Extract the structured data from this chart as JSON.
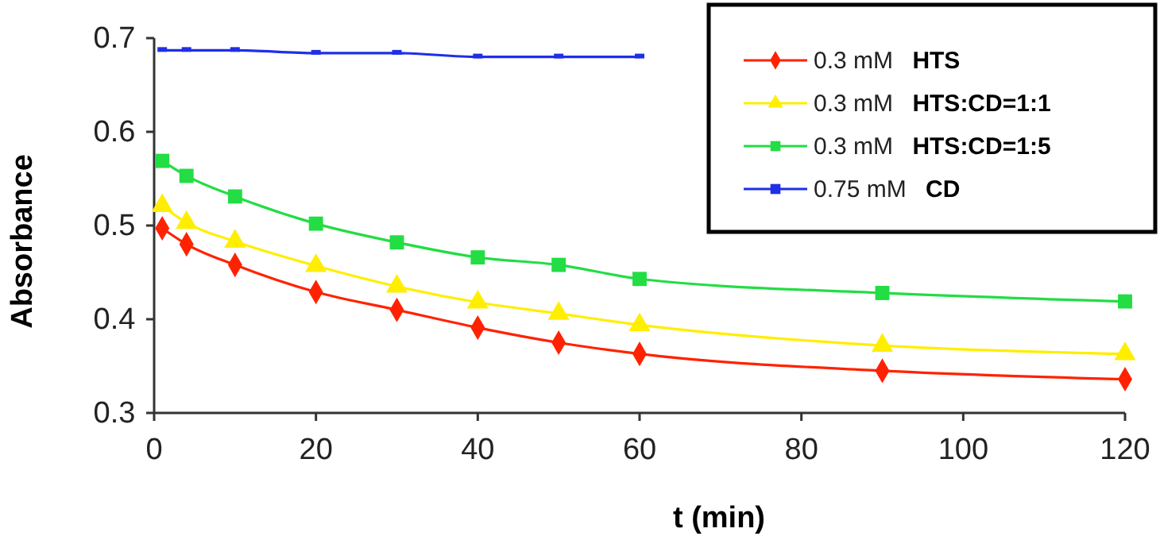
{
  "chart_data": {
    "type": "line",
    "xlabel": "t (min)",
    "ylabel": "Absorbance",
    "xlim": [
      0,
      120
    ],
    "xticks": [
      0,
      20,
      40,
      60,
      80,
      100,
      120
    ],
    "ylim": [
      0.3,
      0.7
    ],
    "yticks": [
      0.3,
      0.4,
      0.5,
      0.6,
      0.7
    ],
    "legend": "top right",
    "series": [
      {
        "name": "0.3 mM HTS",
        "color": "#ff2200",
        "marker": "diamond",
        "x": [
          1,
          4,
          10,
          20,
          30,
          40,
          50,
          60,
          90,
          120
        ],
        "values": [
          0.497,
          0.48,
          0.458,
          0.429,
          0.41,
          0.391,
          0.375,
          0.363,
          0.345,
          0.336
        ]
      },
      {
        "name": "0.3 mM HTS:CD=1:1",
        "color": "#ffee00",
        "marker": "triangle",
        "x": [
          1,
          4,
          10,
          20,
          30,
          40,
          50,
          60,
          90,
          120
        ],
        "values": [
          0.521,
          0.503,
          0.483,
          0.457,
          0.435,
          0.418,
          0.406,
          0.394,
          0.372,
          0.363
        ]
      },
      {
        "name": "0.3 mM HTS:CD=1:5",
        "color": "#22dd44",
        "marker": "square",
        "x": [
          1,
          4,
          10,
          20,
          30,
          40,
          50,
          60,
          90,
          120
        ],
        "values": [
          0.569,
          0.553,
          0.531,
          0.502,
          0.482,
          0.466,
          0.458,
          0.443,
          0.428,
          0.419
        ]
      },
      {
        "name": "0.75 mM CD",
        "color": "#1f2fe8",
        "marker": "square",
        "x": [
          1,
          4,
          10,
          20,
          30,
          40,
          50,
          60
        ],
        "values": [
          0.687,
          0.687,
          0.687,
          0.684,
          0.684,
          0.68,
          0.68,
          0.68
        ]
      }
    ]
  }
}
